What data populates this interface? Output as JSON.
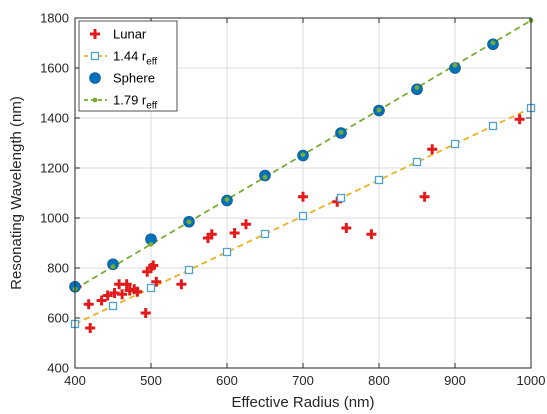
{
  "chart_data": {
    "type": "scatter",
    "xlabel": "Effective Radius (nm)",
    "ylabel": "Resonating Wavelength (nm)",
    "xlim": [
      400,
      1000
    ],
    "ylim": [
      400,
      1800
    ],
    "xticks": [
      400,
      500,
      600,
      700,
      800,
      900,
      1000
    ],
    "yticks": [
      400,
      600,
      800,
      1000,
      1200,
      1400,
      1600,
      1800
    ],
    "grid": true,
    "legend_position": "top-left",
    "series": [
      {
        "name": "Lunar",
        "marker": "plus",
        "color": "#e31a1c",
        "x": [
          402,
          418,
          420,
          435,
          443,
          452,
          458,
          462,
          468,
          472,
          478,
          482,
          493,
          495,
          500,
          503,
          507,
          540,
          575,
          580,
          610,
          625,
          700,
          745,
          757,
          790,
          860,
          870,
          985
        ],
        "y": [
          725,
          655,
          560,
          670,
          690,
          700,
          735,
          695,
          735,
          710,
          715,
          705,
          620,
          785,
          800,
          810,
          745,
          735,
          920,
          935,
          940,
          975,
          1085,
          1065,
          960,
          935,
          1085,
          1275,
          1395
        ]
      },
      {
        "name": "1.44 r_eff",
        "label_main": "1.44 r",
        "label_sub": "eff",
        "marker": "square",
        "line": "dashed",
        "color": "#edb120",
        "marker_color": "#4da3d3",
        "x": [
          400,
          450,
          500,
          550,
          600,
          650,
          700,
          750,
          800,
          850,
          900,
          950,
          1000
        ],
        "y": [
          576,
          648,
          720,
          792,
          864,
          936,
          1008,
          1080,
          1152,
          1224,
          1296,
          1368,
          1440
        ]
      },
      {
        "name": "Sphere",
        "marker": "circle",
        "color": "#0072bd",
        "x": [
          400,
          450,
          500,
          550,
          600,
          650,
          700,
          750,
          800,
          850,
          900,
          950
        ],
        "y": [
          725,
          815,
          915,
          985,
          1070,
          1170,
          1250,
          1340,
          1430,
          1515,
          1600,
          1695
        ]
      },
      {
        "name": "1.79 r_eff",
        "label_main": "1.79 r",
        "label_sub": "eff",
        "marker": "dot",
        "line": "dashed",
        "color": "#77ac30",
        "x": [
          400,
          450,
          500,
          550,
          600,
          650,
          700,
          750,
          800,
          850,
          900,
          950,
          1000
        ],
        "y": [
          716,
          805.5,
          895,
          984.5,
          1074,
          1163.5,
          1253,
          1342.5,
          1432,
          1521.5,
          1611,
          1700.5,
          1790
        ]
      }
    ]
  }
}
